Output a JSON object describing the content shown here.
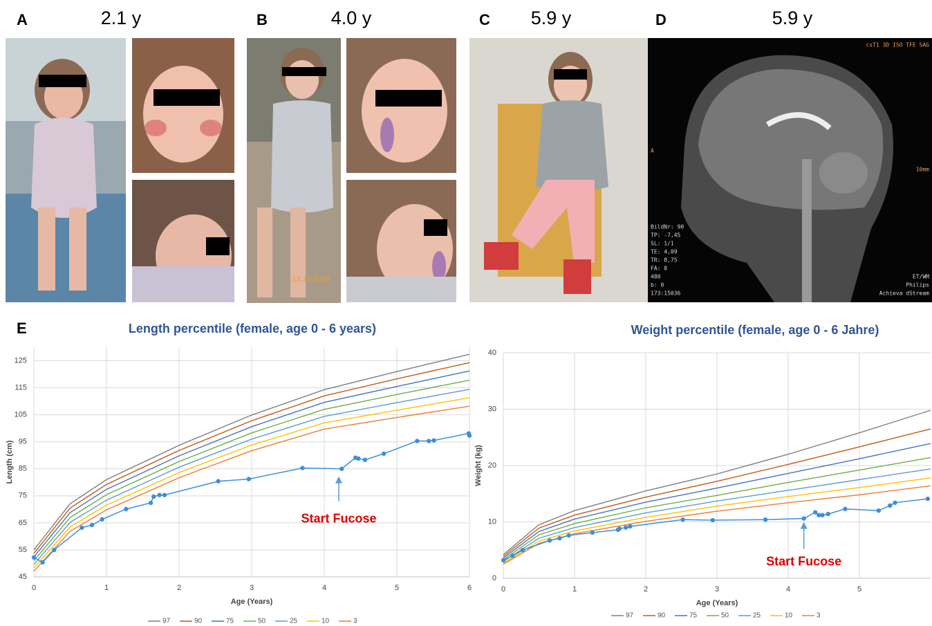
{
  "panels": [
    {
      "label": "A",
      "caption": "2.1 y"
    },
    {
      "label": "B",
      "caption": "4.0 y"
    },
    {
      "label": "C",
      "caption": "5.9 y"
    },
    {
      "label": "D",
      "caption": "5.9 y"
    }
  ],
  "photo_date": "13.10.2016",
  "mri_text": [
    "csT1 3D ISO TFE SAG",
    "A",
    "BildNr: 90",
    "TP: -7,45",
    "SL: 1/1",
    "TE: 4,09",
    "TR: 8,75",
    "FA: 8",
    "480",
    "b: 0",
    "173:15036",
    "ET/WM",
    "Philips",
    "Achieva dStream",
    "10mm"
  ],
  "panel_e_label": "E",
  "chart_data": [
    {
      "type": "line",
      "title": "Length percentile (female, age 0 - 6 years)",
      "x_label": "Age (Years)",
      "y_label": "Length (cm)",
      "xlim": [
        0,
        6
      ],
      "xticks": [
        0,
        1,
        2,
        3,
        4,
        5,
        6
      ],
      "ylim": [
        45,
        130
      ],
      "yticks": [
        45,
        55,
        65,
        75,
        85,
        95,
        105,
        115,
        125
      ],
      "grid": true,
      "legend": "bottom",
      "x": [
        0,
        0.5,
        1,
        2,
        3,
        4,
        5,
        6
      ],
      "series": [
        {
          "name": "97",
          "color": "#7f7f7f",
          "values": [
            55.0,
            72.1,
            81.0,
            93.7,
            104.9,
            114.3,
            121.0,
            127.4
          ]
        },
        {
          "name": "90",
          "color": "#c55a11",
          "values": [
            53.7,
            70.5,
            79.2,
            91.8,
            102.8,
            112.0,
            118.3,
            124.3
          ]
        },
        {
          "name": "75",
          "color": "#4472c4",
          "values": [
            52.4,
            68.8,
            77.4,
            89.8,
            100.6,
            109.6,
            115.5,
            121.2
          ]
        },
        {
          "name": "50",
          "color": "#70ad47",
          "values": [
            51.0,
            67.0,
            75.4,
            87.7,
            98.3,
            107.0,
            112.5,
            117.8
          ]
        },
        {
          "name": "25",
          "color": "#5b9bd5",
          "values": [
            49.6,
            65.2,
            73.4,
            85.6,
            96.0,
            104.4,
            109.5,
            114.4
          ]
        },
        {
          "name": "10",
          "color": "#ffc000",
          "values": [
            48.3,
            63.5,
            71.6,
            83.6,
            93.8,
            102.0,
            106.7,
            111.3
          ]
        },
        {
          "name": "3",
          "color": "#ed7d31",
          "values": [
            47.1,
            61.9,
            69.8,
            81.7,
            91.7,
            99.7,
            104.0,
            108.2
          ]
        }
      ],
      "patient": {
        "color": "#3d8fdc",
        "x": [
          0,
          0.12,
          0.28,
          0.66,
          0.8,
          0.94,
          1.27,
          1.61,
          1.65,
          1.73,
          1.8,
          2.54,
          2.96,
          3.7,
          4.24,
          4.43,
          4.47,
          4.56,
          4.82,
          5.28,
          5.44,
          5.51,
          5.99,
          6.0
        ],
        "values": [
          52.2,
          50.4,
          55.0,
          63.2,
          64.2,
          66.3,
          70.1,
          72.4,
          74.7,
          75.3,
          75.3,
          80.4,
          81.2,
          85.3,
          85.0,
          89.1,
          88.8,
          88.3,
          90.6,
          95.3,
          95.3,
          95.5,
          98.1,
          97.3
        ]
      },
      "annotation": {
        "text": "Start Fucose",
        "x": 4.2
      }
    },
    {
      "type": "line",
      "title": "Weight percentile (female, age 0 - 6 Jahre)",
      "x_label": "Age (Years)",
      "y_label": "Weight (kg)",
      "xlim": [
        0,
        6
      ],
      "xticks": [
        0,
        1,
        2,
        3,
        4,
        5
      ],
      "ylim": [
        0,
        40
      ],
      "yticks": [
        0,
        10,
        20,
        30,
        40
      ],
      "grid": true,
      "legend": "bottom",
      "x": [
        0,
        0.5,
        1,
        2,
        3,
        4,
        5,
        6
      ],
      "series": [
        {
          "name": "97",
          "color": "#7f7f7f",
          "values": [
            4.2,
            9.5,
            12.0,
            15.5,
            18.5,
            22.0,
            25.8,
            29.8
          ]
        },
        {
          "name": "90",
          "color": "#c55a11",
          "values": [
            3.9,
            8.9,
            11.2,
            14.4,
            17.2,
            20.2,
            23.3,
            26.5
          ]
        },
        {
          "name": "75",
          "color": "#4472c4",
          "values": [
            3.6,
            8.3,
            10.5,
            13.5,
            16.0,
            18.6,
            21.2,
            23.9
          ]
        },
        {
          "name": "50",
          "color": "#70ad47",
          "values": [
            3.3,
            7.7,
            9.7,
            12.5,
            14.7,
            17.0,
            19.2,
            21.4
          ]
        },
        {
          "name": "25",
          "color": "#5b9bd5",
          "values": [
            3.0,
            7.1,
            9.0,
            11.6,
            13.7,
            15.6,
            17.5,
            19.4
          ]
        },
        {
          "name": "10",
          "color": "#ffc000",
          "values": [
            2.7,
            6.6,
            8.4,
            10.8,
            12.8,
            14.5,
            16.1,
            17.8
          ]
        },
        {
          "name": "3",
          "color": "#ed7d31",
          "values": [
            2.5,
            6.2,
            7.9,
            10.1,
            11.9,
            13.4,
            14.8,
            16.4
          ]
        }
      ],
      "patient": {
        "color": "#3d8fdc",
        "x": [
          0,
          0.13,
          0.27,
          0.65,
          0.79,
          0.92,
          1.25,
          1.61,
          1.63,
          1.72,
          1.78,
          2.52,
          2.94,
          3.68,
          4.22,
          4.38,
          4.43,
          4.48,
          4.56,
          4.8,
          5.27,
          5.43,
          5.5,
          5.96
        ],
        "values": [
          3.2,
          4.0,
          5.0,
          6.7,
          7.1,
          7.6,
          8.1,
          8.6,
          8.8,
          9.0,
          9.2,
          10.4,
          10.3,
          10.4,
          10.6,
          11.7,
          11.2,
          11.2,
          11.4,
          12.3,
          12.0,
          12.9,
          13.4,
          14.1
        ]
      },
      "annotation": {
        "text": "Start Fucose",
        "x": 4.22
      }
    }
  ]
}
